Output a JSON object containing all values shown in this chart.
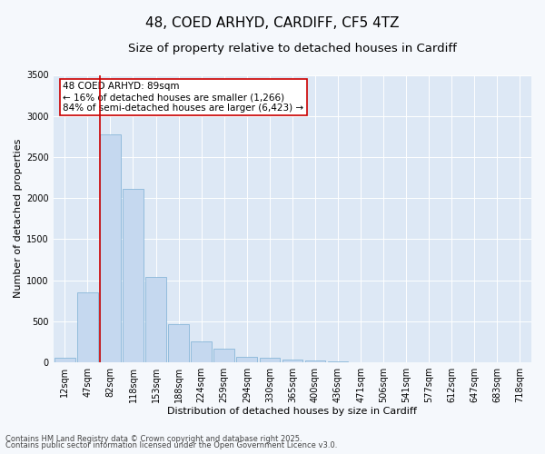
{
  "title1": "48, COED ARHYD, CARDIFF, CF5 4TZ",
  "title2": "Size of property relative to detached houses in Cardiff",
  "xlabel": "Distribution of detached houses by size in Cardiff",
  "ylabel": "Number of detached properties",
  "categories": [
    "12sqm",
    "47sqm",
    "82sqm",
    "118sqm",
    "153sqm",
    "188sqm",
    "224sqm",
    "259sqm",
    "294sqm",
    "330sqm",
    "365sqm",
    "400sqm",
    "436sqm",
    "471sqm",
    "506sqm",
    "541sqm",
    "577sqm",
    "612sqm",
    "647sqm",
    "683sqm",
    "718sqm"
  ],
  "values": [
    55,
    850,
    2780,
    2110,
    1040,
    460,
    250,
    165,
    70,
    55,
    35,
    20,
    10,
    5,
    3,
    2,
    1,
    1,
    0,
    0,
    0
  ],
  "bar_color": "#c5d8ef",
  "bar_edge_color": "#7bafd4",
  "vline_color": "#cc0000",
  "vline_x_index": 2,
  "annotation_title": "48 COED ARHYD: 89sqm",
  "annotation_line1": "← 16% of detached houses are smaller (1,266)",
  "annotation_line2": "84% of semi-detached houses are larger (6,423) →",
  "annotation_box_edgecolor": "#cc0000",
  "annotation_fill": "#ffffff",
  "plot_bg_color": "#dde8f5",
  "fig_bg_color": "#f5f8fc",
  "ylim": [
    0,
    3500
  ],
  "yticks": [
    0,
    500,
    1000,
    1500,
    2000,
    2500,
    3000,
    3500
  ],
  "title_fontsize": 11,
  "subtitle_fontsize": 9.5,
  "axis_label_fontsize": 8,
  "tick_fontsize": 7,
  "annotation_fontsize": 7.5,
  "footer1": "Contains HM Land Registry data © Crown copyright and database right 2025.",
  "footer2": "Contains public sector information licensed under the Open Government Licence v3.0.",
  "footer_fontsize": 6
}
